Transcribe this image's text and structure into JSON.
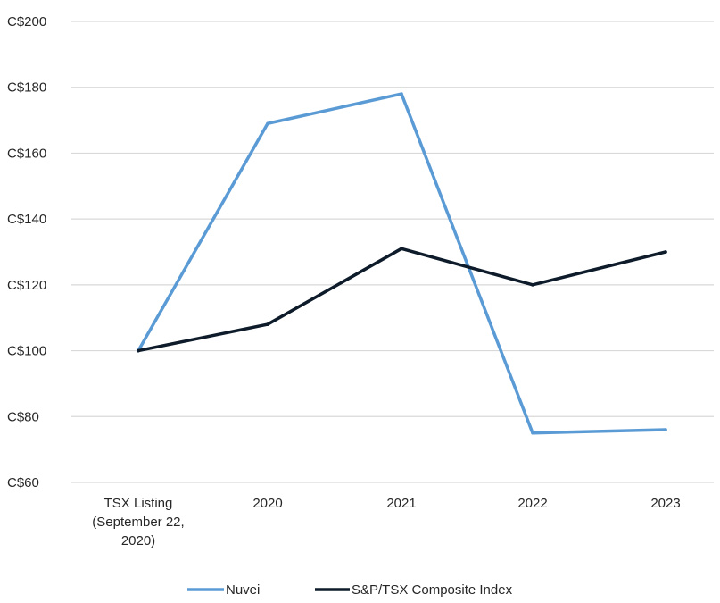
{
  "chart_data": {
    "type": "line",
    "categories": [
      "TSX Listing (September 22, 2020)",
      "2020",
      "2021",
      "2022",
      "2023"
    ],
    "category_label_lines": [
      [
        "TSX Listing",
        "(September 22,",
        "2020)"
      ],
      [
        "2020"
      ],
      [
        "2021"
      ],
      [
        "2022"
      ],
      [
        "2023"
      ]
    ],
    "series": [
      {
        "name": "Nuvei",
        "values": [
          100,
          169,
          178,
          75,
          76
        ],
        "color": "#5B9BD5"
      },
      {
        "name": "S&P/TSX Composite Index",
        "values": [
          100,
          108,
          131,
          120,
          130
        ],
        "color": "#0D1B2A"
      }
    ],
    "ylim": [
      60,
      200
    ],
    "yticks": [
      60,
      80,
      100,
      120,
      140,
      160,
      180,
      200
    ],
    "ytick_labels": [
      "C$60",
      "C$80",
      "C$100",
      "C$120",
      "C$140",
      "C$160",
      "C$180",
      "C$200"
    ],
    "grid": true,
    "grid_color": "#D9D9D9",
    "legend_position": "bottom",
    "title": "",
    "xlabel": "",
    "ylabel": ""
  }
}
